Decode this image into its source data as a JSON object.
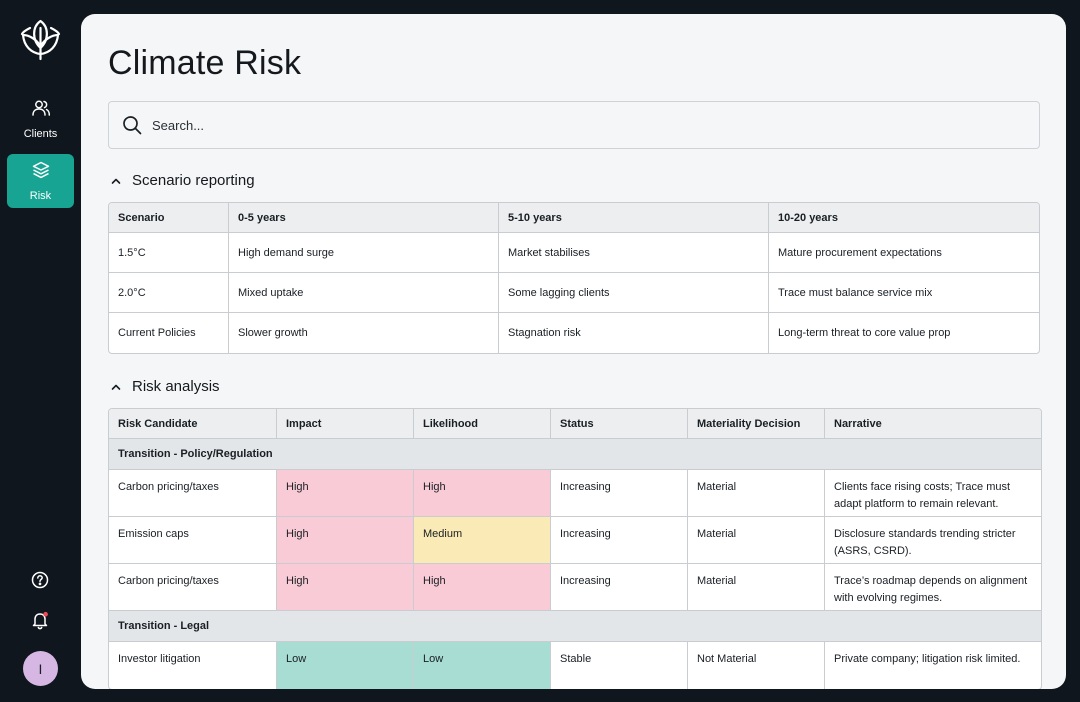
{
  "sidebar": {
    "nav": [
      {
        "label": "Clients",
        "icon": "users-icon"
      },
      {
        "label": "Risk",
        "icon": "layers-icon"
      }
    ],
    "avatar_initial": "I",
    "accent": "#17a493"
  },
  "page": {
    "title": "Climate Risk",
    "search_placeholder": "Search..."
  },
  "scenario": {
    "title": "Scenario reporting",
    "headers": [
      "Scenario",
      "0-5 years",
      "5-10 years",
      "10-20 years"
    ],
    "rows": [
      [
        "1.5°C",
        "High demand surge",
        "Market stabilises",
        "Mature procurement expectations"
      ],
      [
        "2.0°C",
        "Mixed uptake",
        "Some lagging clients",
        "Trace must balance service mix"
      ],
      [
        "Current Policies",
        "Slower growth",
        "Stagnation risk",
        "Long-term threat to core value prop"
      ]
    ]
  },
  "risk": {
    "title": "Risk analysis",
    "headers": [
      "Risk Candidate",
      "Impact",
      "Likelihood",
      "Status",
      "Materiality Decision",
      "Narrative"
    ],
    "groups": [
      {
        "name": "Transition - Policy/Regulation",
        "rows": [
          {
            "candidate": "Carbon pricing/taxes",
            "impact": "High",
            "likelihood": "High",
            "status": "Increasing",
            "materiality": "Material",
            "narrative": "Clients face rising costs; Trace must adapt platform to remain relevant."
          },
          {
            "candidate": "Emission caps",
            "impact": "High",
            "likelihood": "Medium",
            "status": "Increasing",
            "materiality": "Material",
            "narrative": "Disclosure standards trending stricter (ASRS, CSRD)."
          },
          {
            "candidate": "Carbon pricing/taxes",
            "impact": "High",
            "likelihood": "High",
            "status": "Increasing",
            "materiality": "Material",
            "narrative": "Trace’s roadmap depends on alignment with evolving regimes."
          }
        ]
      },
      {
        "name": "Transition - Legal",
        "rows": [
          {
            "candidate": "Investor litigation",
            "impact": "Low",
            "likelihood": "Low",
            "status": "Stable",
            "materiality": "Not Material",
            "narrative": "Private company; litigation risk limited."
          }
        ]
      }
    ],
    "level_colors": {
      "High": "#f9cbd6",
      "Medium": "#faeab5",
      "Low": "#a7ddd3"
    }
  }
}
